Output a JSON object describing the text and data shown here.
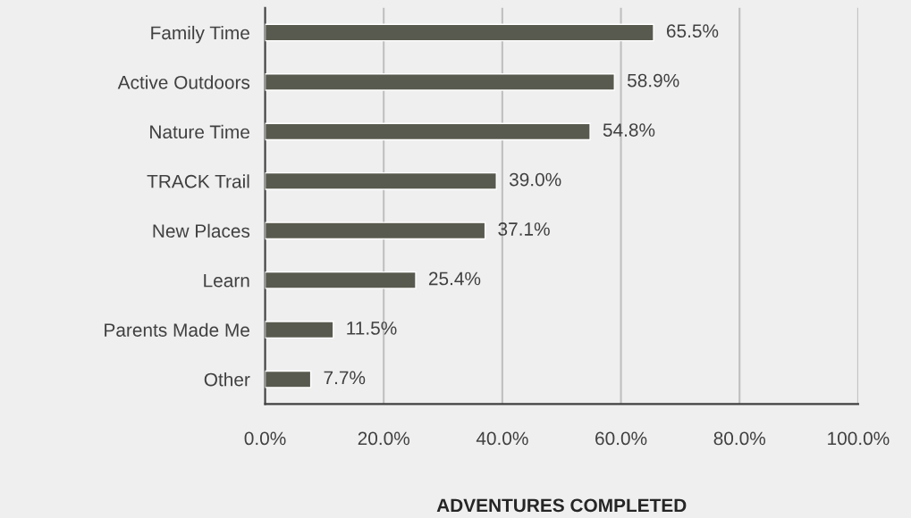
{
  "chart_data": {
    "type": "bar",
    "orientation": "horizontal",
    "categories": [
      "Family Time",
      "Active Outdoors",
      "Nature Time",
      "TRACK Trail",
      "New Places",
      "Learn",
      "Parents Made Me",
      "Other"
    ],
    "values": [
      65.5,
      58.9,
      54.8,
      39.0,
      37.1,
      25.4,
      11.5,
      7.7
    ],
    "value_labels": [
      "65.5%",
      "58.9%",
      "54.8%",
      "39.0%",
      "37.1%",
      "25.4%",
      "11.5%",
      "7.7%"
    ],
    "color": "#595a4f",
    "xlabel": "ADVENTURES COMPLETED",
    "xlim": [
      0,
      100
    ],
    "xticks": [
      {
        "value": 0,
        "label": "0.0%"
      },
      {
        "value": 20,
        "label": "20.0%"
      },
      {
        "value": 40,
        "label": "40.0%"
      },
      {
        "value": 60,
        "label": "60.0%"
      },
      {
        "value": 80,
        "label": "80.0%"
      },
      {
        "value": 100,
        "label": "100.0%"
      }
    ],
    "grid": "x",
    "legend": false
  }
}
